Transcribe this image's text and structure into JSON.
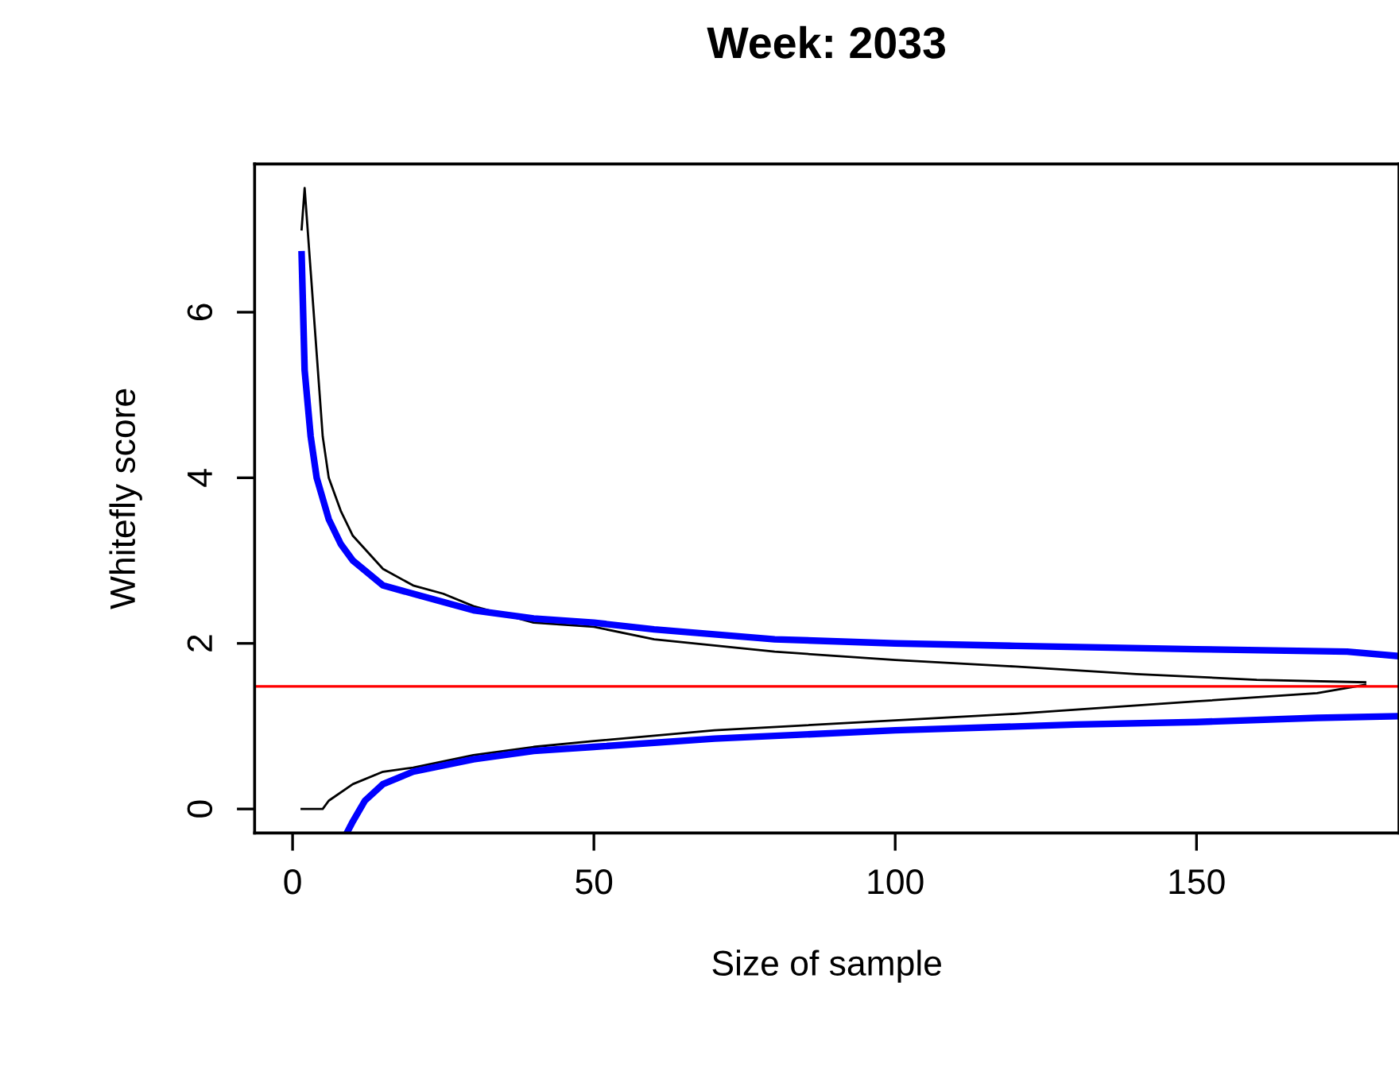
{
  "chart_data": {
    "type": "line",
    "title": "Week: 2033",
    "xlabel": "Size of sample",
    "ylabel": "Whitefly score",
    "xlim": [
      -6.3,
      183.6
    ],
    "ylim": [
      -0.29,
      7.79
    ],
    "xticks": [
      0,
      50,
      100,
      150
    ],
    "yticks": [
      0,
      2,
      4,
      6
    ],
    "grid": false,
    "legend": false,
    "ref_lines": [
      {
        "axis": "y",
        "value": 1.48,
        "color": "#ff0000"
      }
    ],
    "series": [
      {
        "color": "#000000",
        "x": [
          1.5,
          2,
          3,
          4,
          5,
          6,
          8,
          10,
          15,
          20,
          25,
          30,
          40,
          50,
          60,
          80,
          100,
          120,
          140,
          160,
          178
        ],
        "values": [
          7.0,
          7.5,
          6.5,
          5.5,
          4.5,
          4.0,
          3.6,
          3.3,
          2.9,
          2.7,
          2.6,
          2.45,
          2.25,
          2.2,
          2.05,
          1.9,
          1.8,
          1.72,
          1.63,
          1.56,
          1.53
        ]
      },
      {
        "color": "#0000ff",
        "x": [
          1.5,
          2,
          3,
          4,
          6,
          8,
          10,
          15,
          20,
          30,
          40,
          50,
          60,
          80,
          100,
          120,
          150,
          175,
          183
        ],
        "values": [
          6.7,
          5.3,
          4.5,
          4.0,
          3.5,
          3.2,
          3.0,
          2.7,
          2.6,
          2.4,
          2.3,
          2.25,
          2.17,
          2.05,
          2.0,
          1.97,
          1.93,
          1.9,
          1.85
        ]
      },
      {
        "color": "#000000",
        "x": [
          1.5,
          5,
          6,
          10,
          15,
          20,
          30,
          40,
          50,
          70,
          100,
          120,
          150,
          170,
          178
        ],
        "values": [
          0,
          0,
          0.1,
          0.3,
          0.45,
          0.5,
          0.65,
          0.75,
          0.82,
          0.95,
          1.07,
          1.15,
          1.3,
          1.4,
          1.5
        ]
      },
      {
        "color": "#0000ff",
        "x": [
          9,
          10,
          12,
          15,
          20,
          30,
          40,
          50,
          70,
          100,
          130,
          150,
          170,
          183
        ],
        "values": [
          -0.29,
          -0.15,
          0.1,
          0.3,
          0.45,
          0.6,
          0.7,
          0.75,
          0.85,
          0.95,
          1.02,
          1.05,
          1.1,
          1.12
        ]
      }
    ]
  }
}
